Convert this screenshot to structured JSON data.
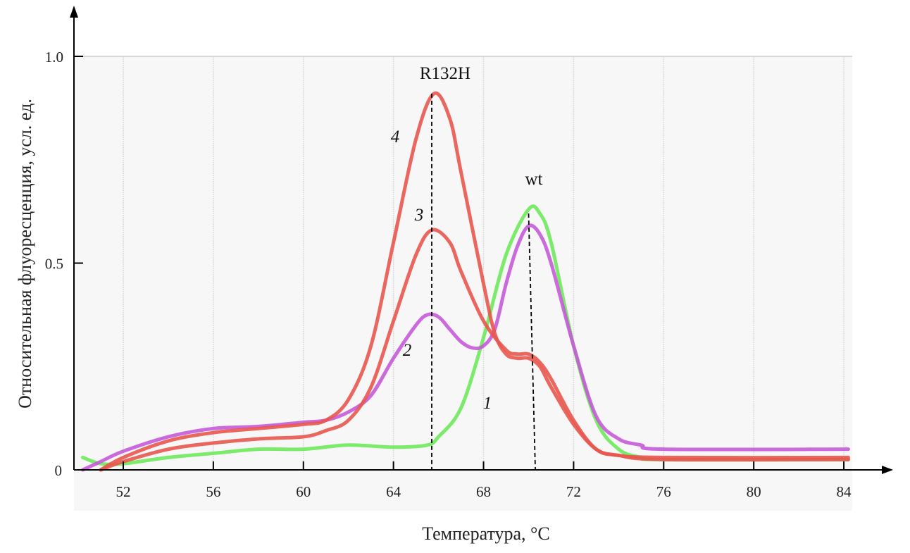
{
  "chart_data": {
    "type": "line",
    "xlabel": "Температура, °С",
    "ylabel": "Относительная флуоресценция, усл. ед.",
    "xlim": [
      49.8,
      84.5
    ],
    "ylim": [
      0,
      1.0
    ],
    "xticks": [
      "52",
      "56",
      "60",
      "64",
      "68",
      "72",
      "76",
      "80",
      "84"
    ],
    "yticks": [
      "0",
      "0.5",
      "1.0"
    ],
    "grid": "vertical",
    "annotations": [
      {
        "text": "R132H",
        "x": 65.7
      },
      {
        "text": "wt",
        "x": 70.2
      }
    ],
    "series": [
      {
        "name": "1",
        "color": "#6ee85a",
        "x": [
          50.2,
          51,
          52,
          54,
          56,
          58,
          60,
          62,
          64,
          65.5,
          66,
          67,
          68,
          69,
          70,
          70.5,
          71,
          72,
          73,
          74,
          75,
          76,
          84.2
        ],
        "y": [
          0.03,
          0.015,
          0.015,
          0.03,
          0.04,
          0.05,
          0.05,
          0.06,
          0.055,
          0.06,
          0.08,
          0.15,
          0.32,
          0.52,
          0.63,
          0.62,
          0.55,
          0.3,
          0.12,
          0.05,
          0.03,
          0.025,
          0.025
        ]
      },
      {
        "name": "2",
        "color": "#c55ad8",
        "x": [
          50.2,
          51,
          52,
          54,
          56,
          58,
          60,
          61,
          62,
          63,
          64,
          65,
          65.5,
          66,
          66.5,
          67,
          67.5,
          68,
          68.5,
          69,
          69.5,
          70,
          70.5,
          71,
          72,
          73,
          74,
          75,
          76,
          84.2
        ],
        "y": [
          0,
          0.02,
          0.045,
          0.08,
          0.1,
          0.105,
          0.115,
          0.12,
          0.14,
          0.18,
          0.27,
          0.35,
          0.375,
          0.37,
          0.34,
          0.31,
          0.295,
          0.3,
          0.34,
          0.45,
          0.54,
          0.59,
          0.57,
          0.5,
          0.3,
          0.13,
          0.075,
          0.06,
          0.05,
          0.05
        ]
      },
      {
        "name": "3",
        "color": "#e8574e",
        "x": [
          51,
          52,
          54,
          56,
          58,
          60,
          61,
          62,
          63,
          64,
          65,
          65.7,
          66.5,
          67,
          68,
          69,
          69.5,
          70,
          70.5,
          71,
          72,
          73,
          74,
          76,
          84.2
        ],
        "y": [
          0,
          0.02,
          0.05,
          0.065,
          0.075,
          0.08,
          0.095,
          0.12,
          0.2,
          0.36,
          0.52,
          0.58,
          0.55,
          0.48,
          0.36,
          0.29,
          0.28,
          0.28,
          0.26,
          0.22,
          0.12,
          0.05,
          0.035,
          0.025,
          0.025
        ]
      },
      {
        "name": "4",
        "color": "#e8574e",
        "x": [
          51,
          52,
          54,
          56,
          58,
          60,
          61,
          62,
          63,
          64,
          65,
          65.8,
          66.5,
          67,
          68,
          68.5,
          69,
          69.5,
          70,
          70.5,
          71,
          72,
          73,
          74,
          76,
          84.2
        ],
        "y": [
          0,
          0.03,
          0.07,
          0.09,
          0.1,
          0.11,
          0.12,
          0.17,
          0.3,
          0.55,
          0.8,
          0.91,
          0.85,
          0.72,
          0.45,
          0.33,
          0.28,
          0.27,
          0.27,
          0.25,
          0.2,
          0.11,
          0.05,
          0.035,
          0.03,
          0.03
        ]
      }
    ]
  }
}
